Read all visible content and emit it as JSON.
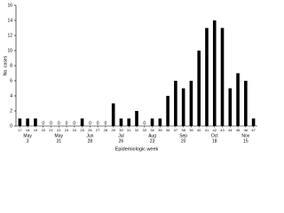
{
  "chart_data": {
    "type": "bar",
    "y_label": "No. cases",
    "x_label": "Epidemiologic week",
    "categories": [
      "17",
      "18",
      "19",
      "20",
      "21",
      "22",
      "23",
      "24",
      "25",
      "26",
      "27",
      "28",
      "29",
      "30",
      "31",
      "32",
      "33",
      "34",
      "35",
      "36",
      "37",
      "38",
      "39",
      "40",
      "41",
      "42",
      "43",
      "44",
      "45",
      "46",
      "47"
    ],
    "values": [
      1,
      1,
      1,
      0,
      0,
      0,
      0,
      0,
      1,
      0,
      0,
      0,
      3,
      1,
      1,
      2,
      0,
      1,
      1,
      4,
      6,
      5,
      6,
      10,
      13,
      14,
      13,
      5,
      7,
      6,
      1
    ],
    "date_labels": [
      null,
      {
        "month": "May",
        "day": "3"
      },
      null,
      null,
      null,
      {
        "month": "May",
        "day": "31"
      },
      null,
      null,
      null,
      {
        "month": "Jun",
        "day": "28"
      },
      null,
      null,
      null,
      {
        "month": "Jul",
        "day": "26"
      },
      null,
      null,
      null,
      {
        "month": "Aug",
        "day": "23"
      },
      null,
      null,
      null,
      {
        "month": "Sep",
        "day": "20"
      },
      null,
      null,
      null,
      {
        "month": "Oct",
        "day": "18"
      },
      null,
      null,
      null,
      {
        "month": "Nov",
        "day": "15"
      },
      null
    ],
    "color": "#000000",
    "ylim": [
      0,
      16
    ],
    "yticks": [
      0,
      2,
      4,
      6,
      8,
      10,
      12,
      14,
      16
    ],
    "grid": false
  }
}
